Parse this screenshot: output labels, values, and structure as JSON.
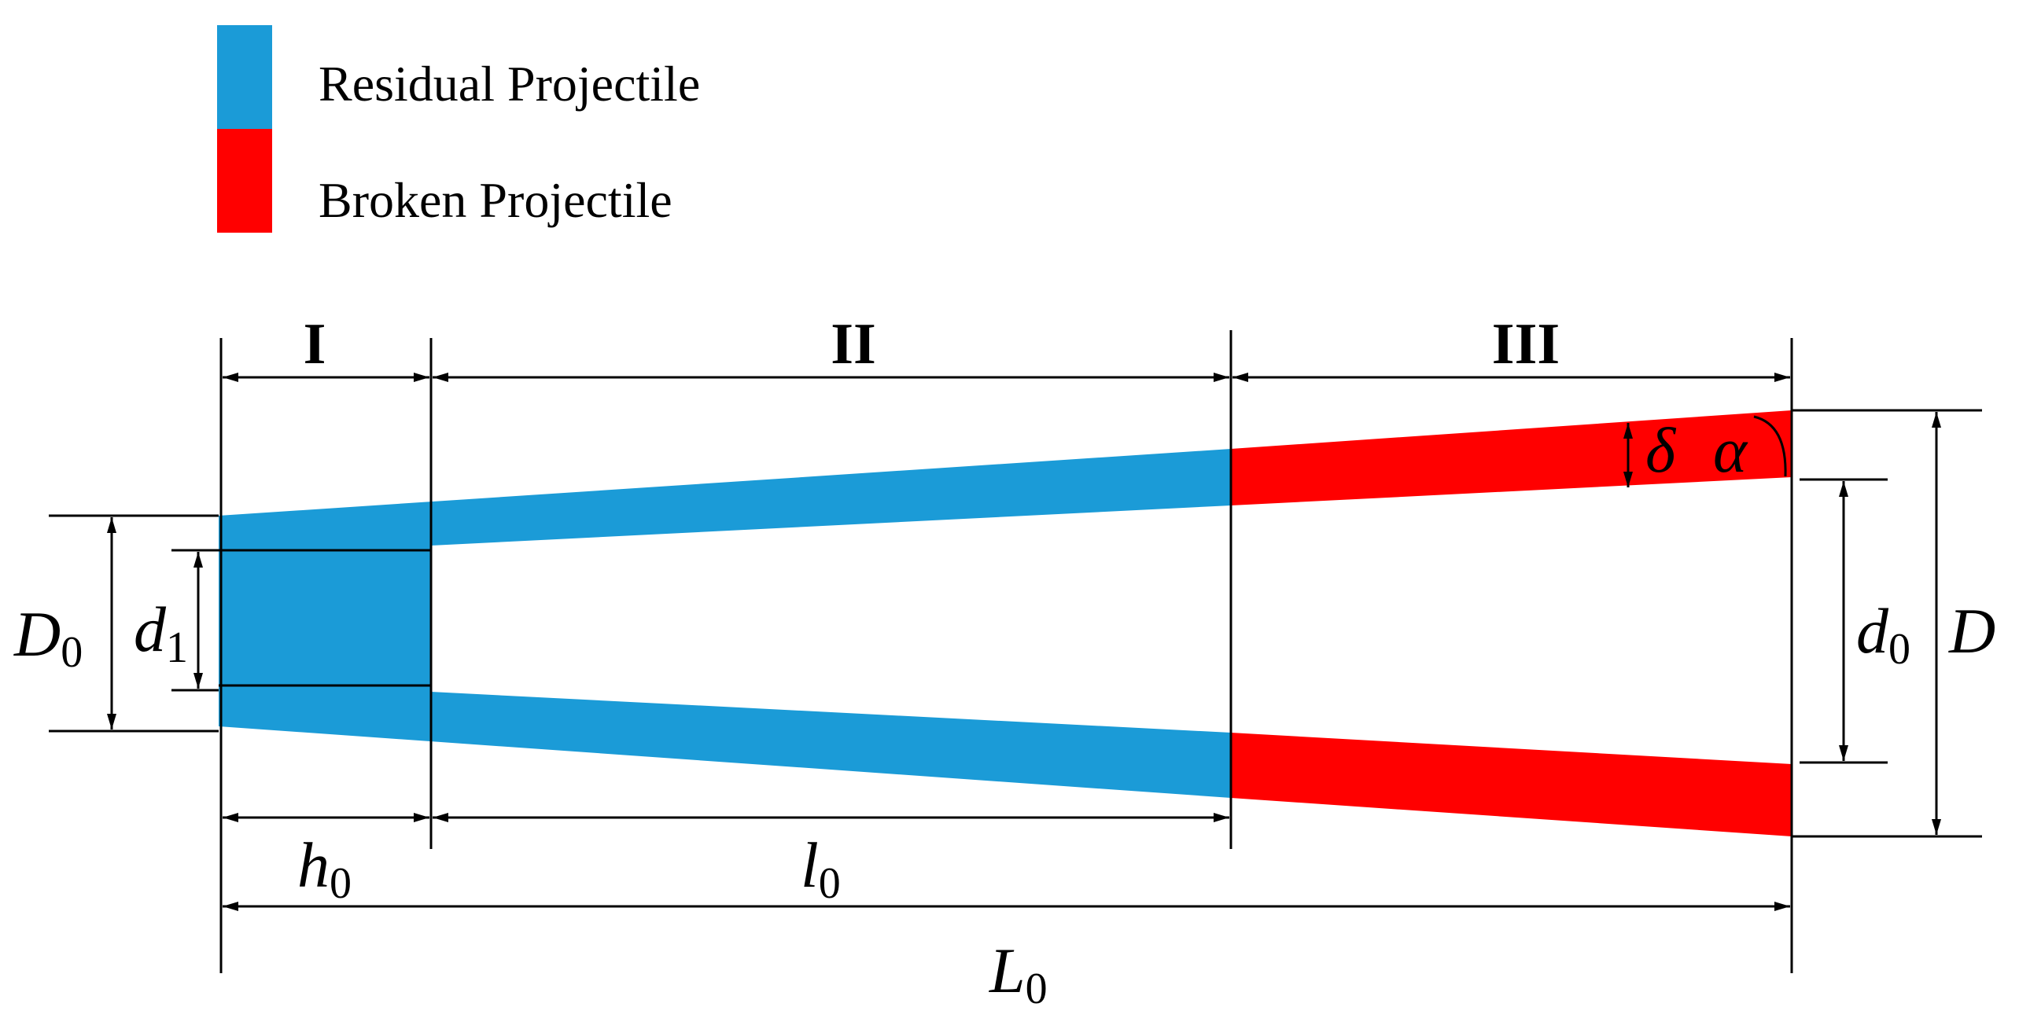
{
  "colors": {
    "residual": "#1B9BD7",
    "broken": "#FF0000",
    "line": "#000000"
  },
  "legend": {
    "residual_label": "Residual Projectile",
    "broken_label": "Broken Projectile"
  },
  "sections": {
    "s1": "I",
    "s2": "II",
    "s3": "III"
  },
  "dimensions": {
    "D0": {
      "main": "D",
      "sub": "0"
    },
    "d1": {
      "main": "d",
      "sub": "1"
    },
    "d0": {
      "main": "d",
      "sub": "0"
    },
    "D": {
      "main": "D"
    },
    "h0": {
      "main": "h",
      "sub": "0"
    },
    "l0": {
      "main": "l",
      "sub": "0"
    },
    "L0": {
      "main": "L",
      "sub": "0"
    },
    "delta": "δ",
    "alpha": "α"
  }
}
